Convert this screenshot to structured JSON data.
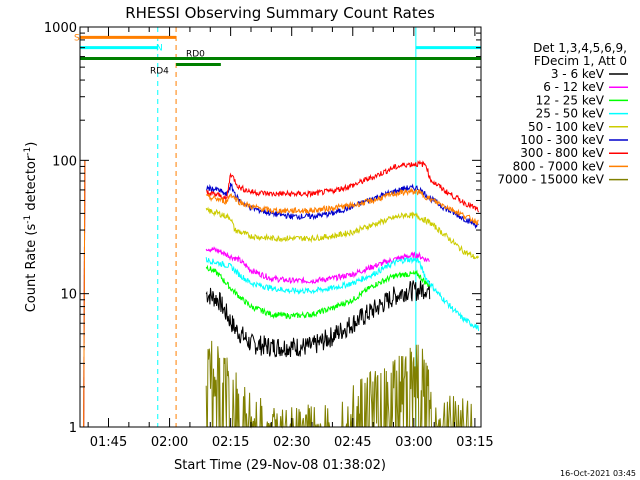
{
  "chart_data": {
    "type": "line",
    "title": "RHESSI Observing Summary Count Rates",
    "xlabel": "Start Time (29-Nov-08 01:38:02)",
    "ylabel_main": "Count Rate (s",
    "ylabel_sup1": "-1",
    "ylabel_mid": " detector",
    "ylabel_sup2": "-1",
    "ylabel_end": ")",
    "y_scale": "log",
    "ylim": [
      1,
      1000
    ],
    "xlim_minutes": [
      98.0,
      196.5
    ],
    "y_ticks": [
      1,
      10,
      100,
      1000
    ],
    "y_tick_labels": [
      "1",
      "10",
      "100",
      "1000"
    ],
    "x_ticks": [
      {
        "min": 105,
        "label": "01:45"
      },
      {
        "min": 120,
        "label": "02:00"
      },
      {
        "min": 135,
        "label": "02:15"
      },
      {
        "min": 150,
        "label": "02:30"
      },
      {
        "min": 165,
        "label": "02:45"
      },
      {
        "min": 180,
        "label": "03:00"
      },
      {
        "min": 195,
        "label": "03:15"
      }
    ],
    "legend_header": [
      "Det 1,3,4,5,6,9,",
      "FDecim 1, Att 0"
    ],
    "legend_placement": "right",
    "series": [
      {
        "name": "3 - 6 keV",
        "color": "#000000",
        "points": [
          [
            129,
            10
          ],
          [
            132,
            9
          ],
          [
            136,
            5.5
          ],
          [
            140,
            4.2
          ],
          [
            145,
            4.0
          ],
          [
            150,
            4.0
          ],
          [
            155,
            4.0
          ],
          [
            160,
            4.8
          ],
          [
            165,
            6.0
          ],
          [
            170,
            7.5
          ],
          [
            175,
            9.5
          ],
          [
            178,
            10.5
          ],
          [
            181,
            10.5
          ],
          [
            183,
            11.0
          ],
          [
            184,
            10.5
          ]
        ]
      },
      {
        "name": "6 - 12 keV",
        "color": "#ff00ff",
        "points": [
          [
            129,
            22
          ],
          [
            132,
            21
          ],
          [
            135,
            19
          ],
          [
            137,
            18
          ],
          [
            140,
            15
          ],
          [
            145,
            13
          ],
          [
            150,
            12.5
          ],
          [
            155,
            12.5
          ],
          [
            160,
            13
          ],
          [
            165,
            14
          ],
          [
            170,
            16
          ],
          [
            175,
            18
          ],
          [
            178,
            19
          ],
          [
            181,
            19.5
          ],
          [
            183,
            18
          ],
          [
            184,
            18
          ]
        ]
      },
      {
        "name": "12 - 25 keV",
        "color": "#00ff00",
        "points": [
          [
            129,
            16
          ],
          [
            132,
            14
          ],
          [
            135,
            11
          ],
          [
            138,
            9
          ],
          [
            140,
            8
          ],
          [
            145,
            7
          ],
          [
            150,
            6.8
          ],
          [
            155,
            7
          ],
          [
            160,
            7.8
          ],
          [
            165,
            9
          ],
          [
            170,
            11.5
          ],
          [
            175,
            13.5
          ],
          [
            178,
            14
          ],
          [
            181,
            14
          ],
          [
            183,
            12
          ],
          [
            184,
            11.5
          ]
        ]
      },
      {
        "name": "25 - 50 keV",
        "color": "#00ffff",
        "points": [
          [
            129,
            18
          ],
          [
            132,
            17
          ],
          [
            135,
            16
          ],
          [
            137,
            14
          ],
          [
            140,
            12
          ],
          [
            145,
            11
          ],
          [
            150,
            10.5
          ],
          [
            155,
            10.5
          ],
          [
            160,
            11
          ],
          [
            165,
            12
          ],
          [
            170,
            14
          ],
          [
            175,
            17
          ],
          [
            178,
            18
          ],
          [
            181,
            18
          ],
          [
            183,
            13
          ],
          [
            186,
            10
          ],
          [
            189,
            8
          ],
          [
            192,
            6.5
          ],
          [
            196,
            5.5
          ]
        ]
      },
      {
        "name": "50 - 100 keV",
        "color": "#cccc00",
        "points": [
          [
            129,
            42
          ],
          [
            132,
            40
          ],
          [
            135,
            37
          ],
          [
            136,
            30
          ],
          [
            140,
            27
          ],
          [
            145,
            26
          ],
          [
            150,
            26
          ],
          [
            155,
            26
          ],
          [
            160,
            27
          ],
          [
            165,
            29
          ],
          [
            170,
            33
          ],
          [
            175,
            37
          ],
          [
            178,
            39
          ],
          [
            181,
            38
          ],
          [
            184,
            34
          ],
          [
            188,
            27
          ],
          [
            192,
            21
          ],
          [
            196,
            18
          ]
        ]
      },
      {
        "name": "100 - 300 keV",
        "color": "#0000cc",
        "points": [
          [
            129,
            62
          ],
          [
            132,
            60
          ],
          [
            134,
            55
          ],
          [
            135,
            65
          ],
          [
            137,
            50
          ],
          [
            140,
            44
          ],
          [
            145,
            40
          ],
          [
            150,
            38
          ],
          [
            155,
            38
          ],
          [
            160,
            40
          ],
          [
            165,
            45
          ],
          [
            170,
            52
          ],
          [
            175,
            58
          ],
          [
            178,
            62
          ],
          [
            181,
            62
          ],
          [
            184,
            52
          ],
          [
            188,
            43
          ],
          [
            192,
            37
          ],
          [
            196,
            32
          ]
        ]
      },
      {
        "name": "300 - 800 keV",
        "color": "#ff0000",
        "points": [
          [
            129,
            57
          ],
          [
            132,
            55
          ],
          [
            134,
            51
          ],
          [
            135,
            80
          ],
          [
            137,
            63
          ],
          [
            140,
            58
          ],
          [
            145,
            56
          ],
          [
            150,
            56
          ],
          [
            155,
            56
          ],
          [
            160,
            59
          ],
          [
            165,
            65
          ],
          [
            170,
            75
          ],
          [
            175,
            88
          ],
          [
            178,
            93
          ],
          [
            181,
            94
          ],
          [
            183,
            93
          ],
          [
            184,
            72
          ],
          [
            188,
            58
          ],
          [
            192,
            49
          ],
          [
            196,
            42
          ]
        ]
      },
      {
        "name": "800 - 7000 keV",
        "color": "#ff7f00",
        "points": [
          [
            129,
            53
          ],
          [
            132,
            51
          ],
          [
            134,
            49
          ],
          [
            135,
            56
          ],
          [
            137,
            49
          ],
          [
            140,
            45
          ],
          [
            145,
            42
          ],
          [
            150,
            42
          ],
          [
            155,
            42
          ],
          [
            160,
            44
          ],
          [
            165,
            46
          ],
          [
            170,
            50
          ],
          [
            175,
            56
          ],
          [
            178,
            58
          ],
          [
            181,
            58
          ],
          [
            184,
            51
          ],
          [
            188,
            45
          ],
          [
            192,
            39
          ],
          [
            196,
            34
          ]
        ]
      },
      {
        "name": "7000 - 15000 keV",
        "color": "#808000",
        "points": [
          [
            129,
            3.2
          ],
          [
            132,
            2.8
          ],
          [
            135,
            2.2
          ],
          [
            138,
            1.5
          ],
          [
            140,
            1.2
          ],
          [
            145,
            1.0
          ],
          [
            150,
            1.0
          ],
          [
            155,
            1.0
          ],
          [
            160,
            1.0
          ],
          [
            165,
            1.4
          ],
          [
            170,
            1.9
          ],
          [
            175,
            2.2
          ],
          [
            178,
            2.6
          ],
          [
            181,
            2.8
          ],
          [
            183,
            2.7
          ],
          [
            185,
            1.2
          ],
          [
            188,
            1.2
          ],
          [
            192,
            1.1
          ],
          [
            195,
            1.0
          ]
        ]
      }
    ],
    "annotations": {
      "attenuator_label": "S",
      "night_label": "N",
      "rd4_label": "RD4",
      "rd0_label": "RD0",
      "bars": [
        {
          "color": "#ff7f00",
          "y": 836,
          "x_start": 98.0,
          "x_end": 121.6
        },
        {
          "color": "#00ffff",
          "y": 700,
          "x_start": 98.0,
          "x_end": 117.1
        },
        {
          "color": "#00ffff",
          "y": 700,
          "x_start": 180.5,
          "x_end": 196.5
        },
        {
          "color": "#008000",
          "y": 580,
          "x_start": 98.0,
          "x_end": 196.5
        }
      ],
      "vertical_lines": [
        {
          "color": "#00ffff",
          "x": 98.0,
          "dashed": false
        },
        {
          "color": "#00ffff",
          "x": 117.1,
          "dashed": true
        },
        {
          "color": "#ff7f00",
          "x": 121.6,
          "dashed": true
        },
        {
          "color": "#00ffff",
          "x": 180.5,
          "dashed": false
        },
        {
          "color": "#00ffff",
          "x": 196.5,
          "dashed": true
        }
      ]
    },
    "footer": "16-Oct-2021 03:45"
  }
}
